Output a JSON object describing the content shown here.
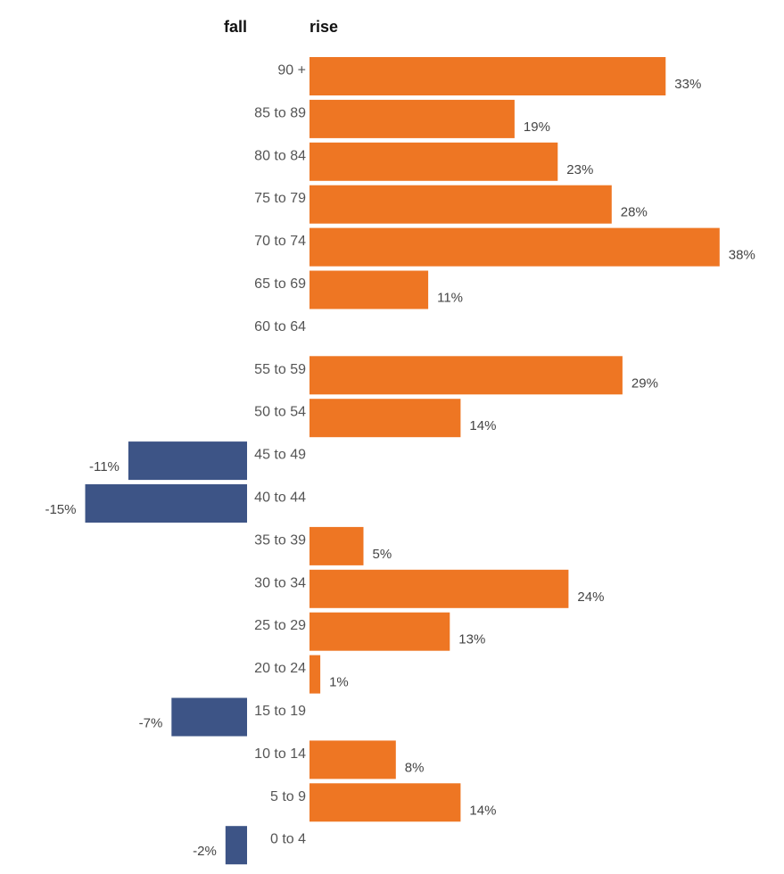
{
  "headers": {
    "fall": "fall",
    "rise": "rise"
  },
  "colors": {
    "rise": "#ee7623",
    "fall": "#3d5486"
  },
  "chart_data": {
    "type": "bar",
    "orientation": "horizontal",
    "title": "",
    "xlabel": "",
    "ylabel": "",
    "grid": false,
    "xlim": [
      -15,
      38
    ],
    "categories": [
      "90 +",
      "85 to 89",
      "80 to 84",
      "75 to 79",
      "70 to 74",
      "65 to 69",
      "60 to 64",
      "55 to 59",
      "50 to 54",
      "45 to 49",
      "40 to 44",
      "35 to 39",
      "30 to 34",
      "25 to 29",
      "20 to 24",
      "15 to 19",
      "10 to 14",
      "5 to 9",
      "0 to 4"
    ],
    "values": [
      33,
      19,
      23,
      28,
      38,
      11,
      null,
      29,
      14,
      -11,
      -15,
      5,
      24,
      13,
      1,
      -7,
      8,
      14,
      -2
    ],
    "value_labels": [
      "33%",
      "19%",
      "23%",
      "28%",
      "38%",
      "11%",
      "",
      "29%",
      "14%",
      "-11%",
      "-15%",
      "5%",
      "24%",
      "13%",
      "1%",
      "-7%",
      "8%",
      "14%",
      "-2%"
    ]
  }
}
